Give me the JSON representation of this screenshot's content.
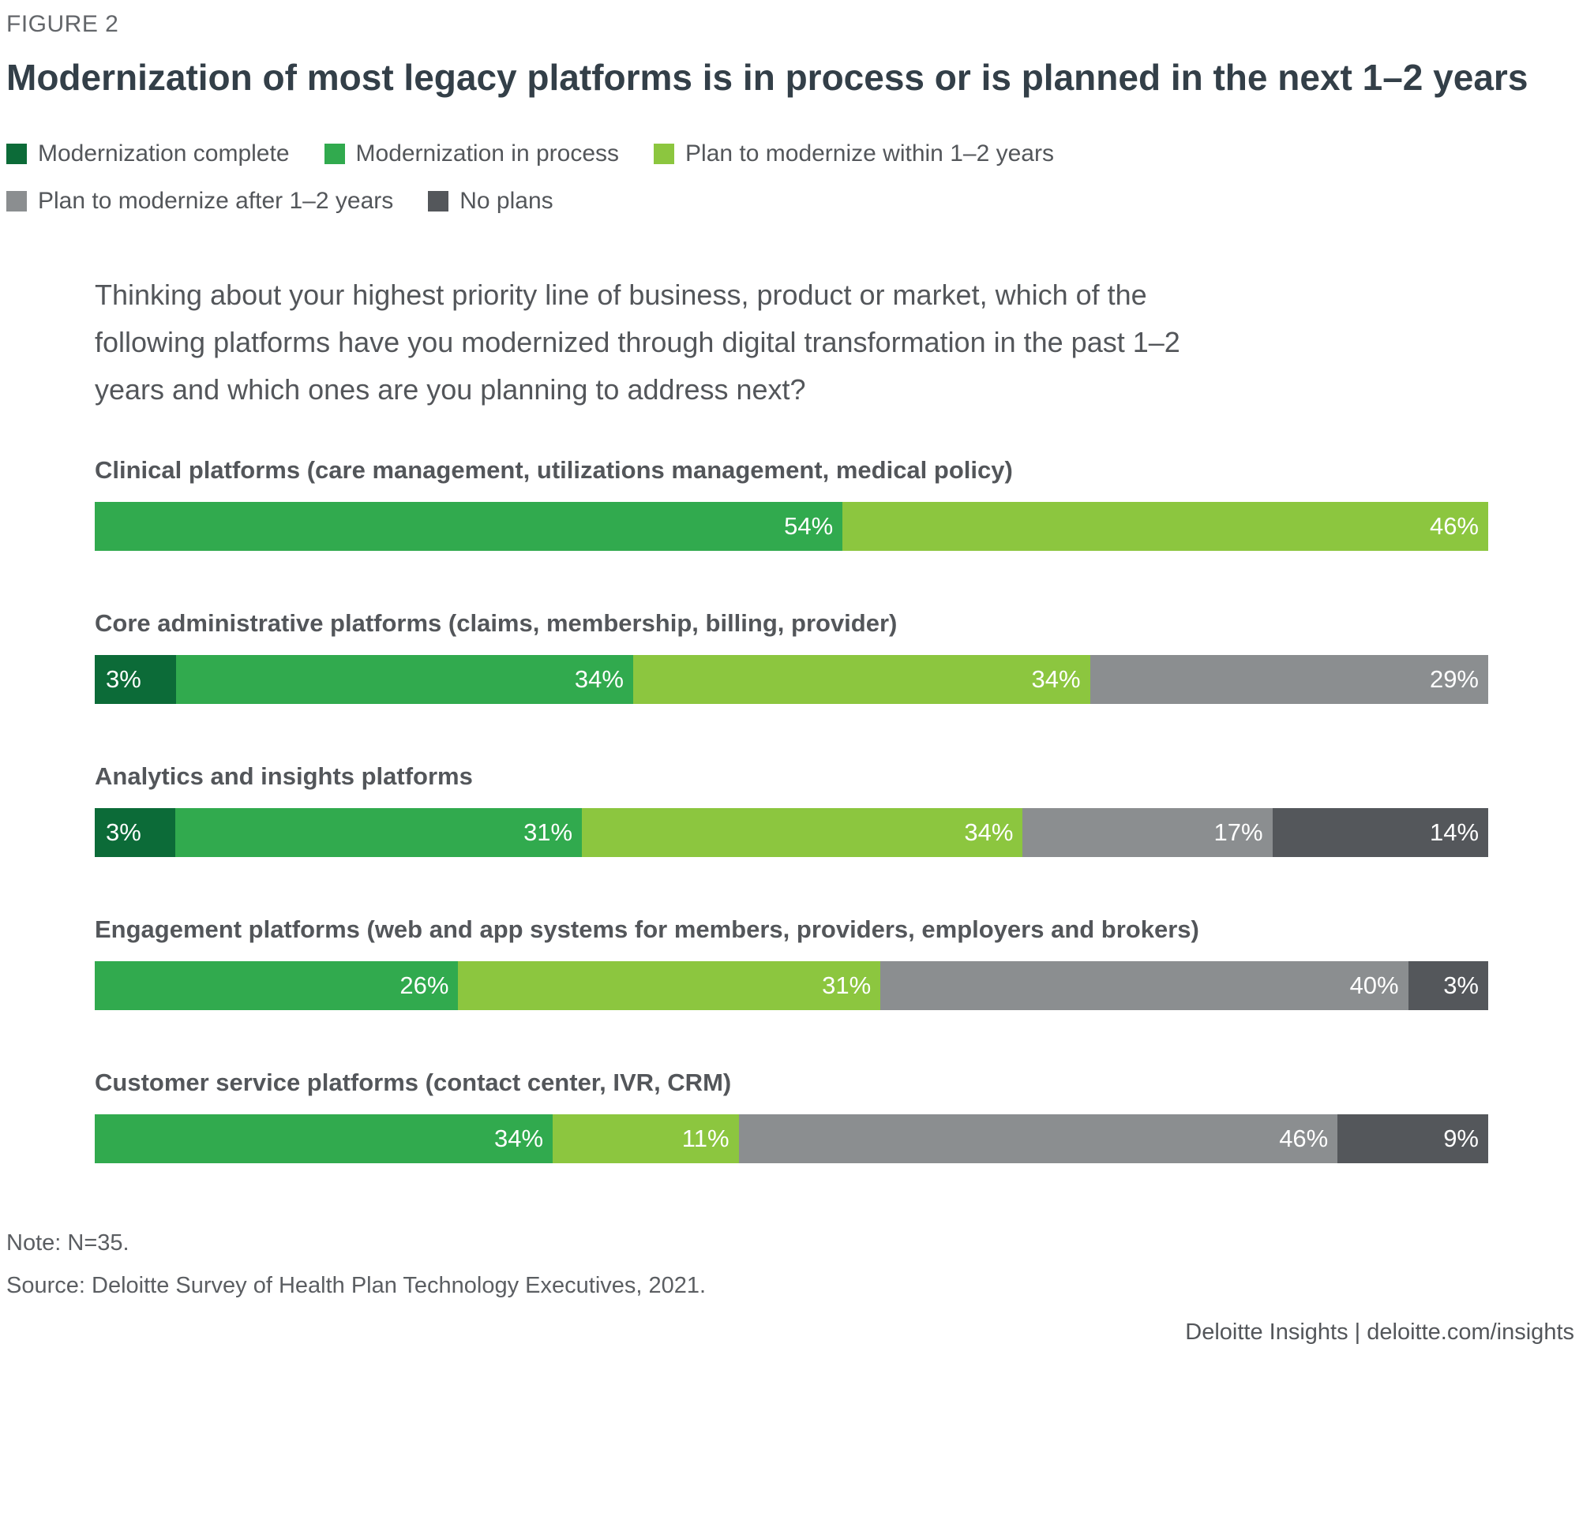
{
  "figure_label": "FIGURE 2",
  "title": "Modernization of most legacy platforms is in process or is planned in the next 1–2 years",
  "question": "Thinking about your highest priority line of business, product or market, which of the following platforms have you modernized through digital transformation in the past 1–2 years and which ones are you planning to address next?",
  "chart_data": {
    "type": "bar",
    "orientation": "horizontal-stacked",
    "unit": "%",
    "value_range": [
      0,
      100
    ],
    "grid": false,
    "legend_position": "top",
    "series": [
      {
        "name": "Modernization complete",
        "color": "#0c6b38"
      },
      {
        "name": "Modernization in process",
        "color": "#31aa4e"
      },
      {
        "name": "Plan to modernize within 1–2 years",
        "color": "#8cc63f"
      },
      {
        "name": "Plan to modernize after 1–2 years",
        "color": "#8b8e90"
      },
      {
        "name": "No plans",
        "color": "#54575b"
      }
    ],
    "categories": [
      "Clinical platforms (care management, utilizations management, medical policy)",
      "Core administrative platforms (claims, membership, billing, provider)",
      "Analytics and insights platforms",
      "Engagement platforms (web and app systems for members, providers, employers and brokers)",
      "Customer service platforms (contact center, IVR, CRM)"
    ],
    "rows": [
      {
        "category": "Clinical platforms (care management, utilizations management, medical policy)",
        "values": [
          null,
          54,
          46,
          null,
          null
        ]
      },
      {
        "category": "Core administrative platforms (claims, membership, billing, provider)",
        "values": [
          3,
          34,
          34,
          29,
          null
        ]
      },
      {
        "category": "Analytics and insights platforms",
        "values": [
          3,
          31,
          34,
          17,
          14
        ]
      },
      {
        "category": "Engagement platforms (web and app systems for members, providers, employers and brokers)",
        "values": [
          null,
          26,
          31,
          40,
          3
        ]
      },
      {
        "category": "Customer service platforms (contact center, IVR, CRM)",
        "values": [
          null,
          34,
          11,
          46,
          9
        ]
      }
    ]
  },
  "note": "Note: N=35.",
  "source": "Source: Deloitte Survey of Health Plan Technology Executives, 2021.",
  "footer": "Deloitte Insights | deloitte.com/insights"
}
